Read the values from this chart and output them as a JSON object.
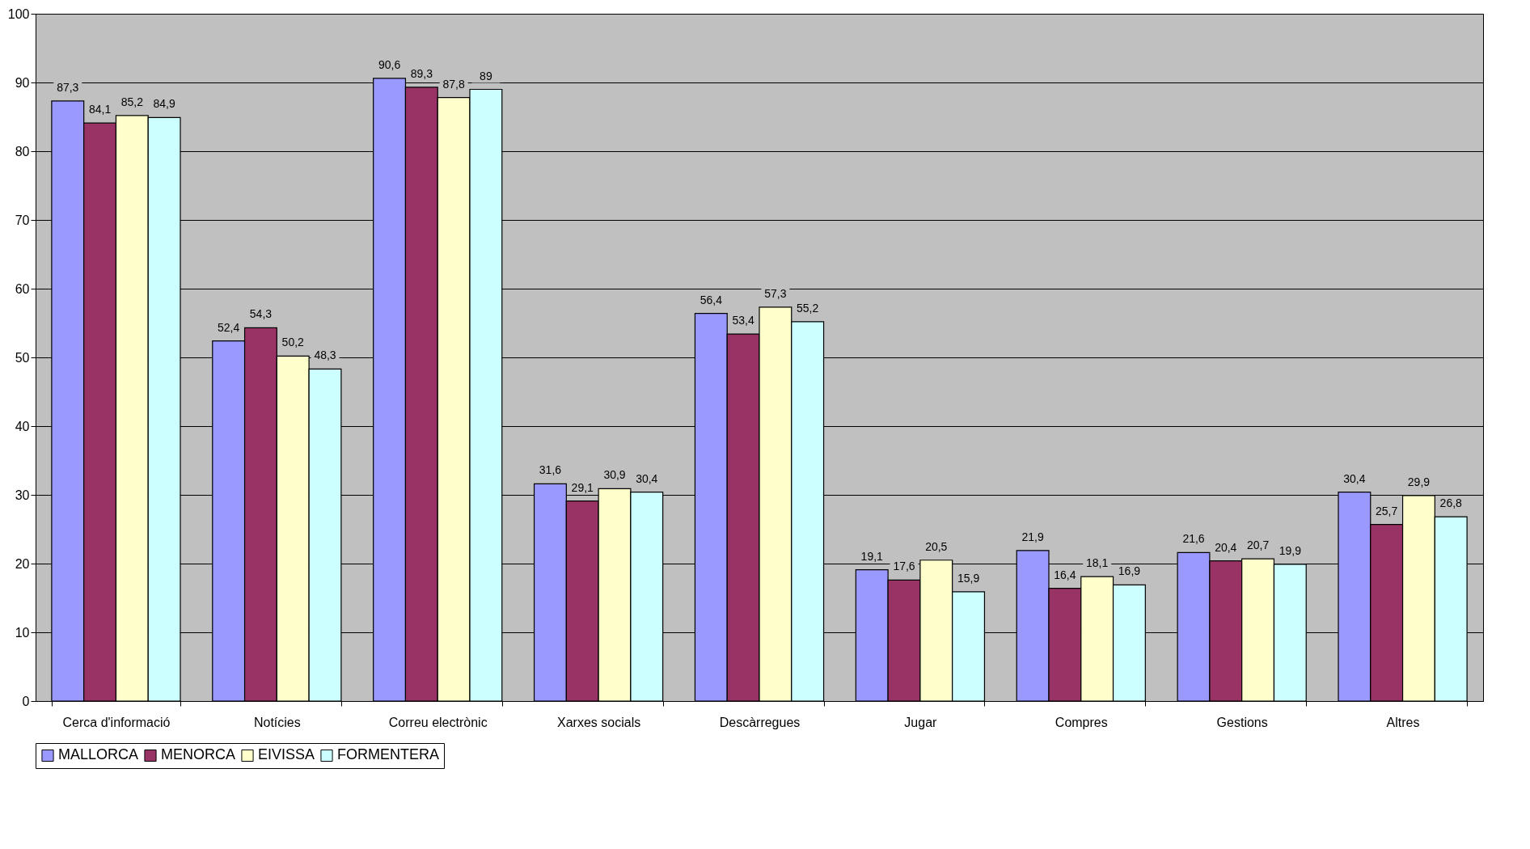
{
  "chart_data": {
    "type": "bar",
    "categories": [
      "Cerca d'informació",
      "Notícies",
      "Correu electrònic",
      "Xarxes socials",
      "Descàrregues",
      "Jugar",
      "Compres",
      "Gestions",
      "Altres"
    ],
    "series": [
      {
        "name": "MALLORCA",
        "color": "#9999ff",
        "values": [
          87.3,
          52.4,
          90.6,
          31.6,
          56.4,
          19.1,
          21.9,
          21.6,
          30.4
        ],
        "value_labels": [
          "87,3",
          "52,4",
          "90,6",
          "31,6",
          "56,4",
          "19,1",
          "21,9",
          "21,6",
          "30,4"
        ]
      },
      {
        "name": "MENORCA",
        "color": "#993366",
        "values": [
          84.1,
          54.3,
          89.3,
          29.1,
          53.4,
          17.6,
          16.4,
          20.4,
          25.7
        ],
        "value_labels": [
          "84,1",
          "54,3",
          "89,3",
          "29,1",
          "53,4",
          "17,6",
          "16,4",
          "20,4",
          "25,7"
        ]
      },
      {
        "name": "EIVISSA",
        "color": "#ffffcc",
        "values": [
          85.2,
          50.2,
          87.8,
          30.9,
          57.3,
          20.5,
          18.1,
          20.7,
          29.9
        ],
        "value_labels": [
          "85,2",
          "50,2",
          "87,8",
          "30,9",
          "57,3",
          "20,5",
          "18,1",
          "20,7",
          "29,9"
        ]
      },
      {
        "name": "FORMENTERA",
        "color": "#ccffff",
        "values": [
          84.9,
          48.3,
          89,
          30.4,
          55.2,
          15.9,
          16.9,
          19.9,
          26.8
        ],
        "value_labels": [
          "84,9",
          "48,3",
          "89",
          "30,4",
          "55,2",
          "15,9",
          "16,9",
          "19,9",
          "26,8"
        ]
      }
    ],
    "ylim": [
      0,
      100
    ],
    "yticks": [
      0,
      10,
      20,
      30,
      40,
      50,
      60,
      70,
      80,
      90,
      100
    ],
    "grid": "y",
    "legend": "bottom"
  }
}
